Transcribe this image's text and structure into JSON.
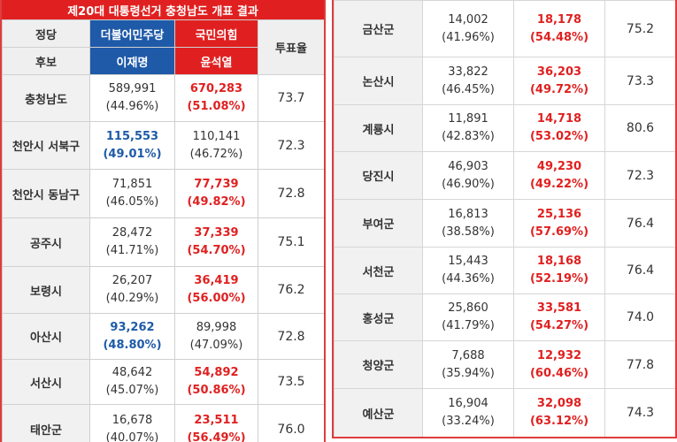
{
  "title": "제20대 대통령선거 충청남도 개표 결과",
  "header": {
    "party_label": "정당",
    "candidate_label": "후보",
    "turnout_label": "투표율",
    "dem_party": "더불어민주당",
    "ppp_party": "국민의힘",
    "dem_candidate": "이재명",
    "ppp_candidate": "윤석열"
  },
  "colors": {
    "accent_red": "#e02020",
    "dem_blue": "#1e5aa8"
  },
  "left_rows": [
    {
      "region": "충청남도",
      "dem_votes": "589,991",
      "dem_pct": "(44.96%)",
      "ppp_votes": "670,283",
      "ppp_pct": "(51.08%)",
      "turnout": "73.7",
      "winner": "ppp"
    },
    {
      "region": "천안시 서북구",
      "dem_votes": "115,553",
      "dem_pct": "(49.01%)",
      "ppp_votes": "110,141",
      "ppp_pct": "(46.72%)",
      "turnout": "72.3",
      "winner": "dem"
    },
    {
      "region": "천안시 동남구",
      "dem_votes": "71,851",
      "dem_pct": "(46.05%)",
      "ppp_votes": "77,739",
      "ppp_pct": "(49.82%)",
      "turnout": "72.8",
      "winner": "ppp"
    },
    {
      "region": "공주시",
      "dem_votes": "28,472",
      "dem_pct": "(41.71%)",
      "ppp_votes": "37,339",
      "ppp_pct": "(54.70%)",
      "turnout": "75.1",
      "winner": "ppp"
    },
    {
      "region": "보령시",
      "dem_votes": "26,207",
      "dem_pct": "(40.29%)",
      "ppp_votes": "36,419",
      "ppp_pct": "(56.00%)",
      "turnout": "76.2",
      "winner": "ppp"
    },
    {
      "region": "아산시",
      "dem_votes": "93,262",
      "dem_pct": "(48.80%)",
      "ppp_votes": "89,998",
      "ppp_pct": "(47.09%)",
      "turnout": "72.8",
      "winner": "dem"
    },
    {
      "region": "서산시",
      "dem_votes": "48,642",
      "dem_pct": "(45.07%)",
      "ppp_votes": "54,892",
      "ppp_pct": "(50.86%)",
      "turnout": "73.5",
      "winner": "ppp"
    },
    {
      "region": "태안군",
      "dem_votes": "16,678",
      "dem_pct": "(40.07%)",
      "ppp_votes": "23,511",
      "ppp_pct": "(56.49%)",
      "turnout": "76.0",
      "winner": "ppp"
    }
  ],
  "right_rows": [
    {
      "region": "금산군",
      "dem_votes": "14,002",
      "dem_pct": "(41.96%)",
      "ppp_votes": "18,178",
      "ppp_pct": "(54.48%)",
      "turnout": "75.2",
      "winner": "ppp"
    },
    {
      "region": "논산시",
      "dem_votes": "33,822",
      "dem_pct": "(46.45%)",
      "ppp_votes": "36,203",
      "ppp_pct": "(49.72%)",
      "turnout": "73.3",
      "winner": "ppp"
    },
    {
      "region": "계룡시",
      "dem_votes": "11,891",
      "dem_pct": "(42.83%)",
      "ppp_votes": "14,718",
      "ppp_pct": "(53.02%)",
      "turnout": "80.6",
      "winner": "ppp"
    },
    {
      "region": "당진시",
      "dem_votes": "46,903",
      "dem_pct": "(46.90%)",
      "ppp_votes": "49,230",
      "ppp_pct": "(49.22%)",
      "turnout": "72.3",
      "winner": "ppp"
    },
    {
      "region": "부여군",
      "dem_votes": "16,813",
      "dem_pct": "(38.58%)",
      "ppp_votes": "25,136",
      "ppp_pct": "(57.69%)",
      "turnout": "76.4",
      "winner": "ppp"
    },
    {
      "region": "서천군",
      "dem_votes": "15,443",
      "dem_pct": "(44.36%)",
      "ppp_votes": "18,168",
      "ppp_pct": "(52.19%)",
      "turnout": "76.4",
      "winner": "ppp"
    },
    {
      "region": "홍성군",
      "dem_votes": "25,860",
      "dem_pct": "(41.79%)",
      "ppp_votes": "33,581",
      "ppp_pct": "(54.27%)",
      "turnout": "74.0",
      "winner": "ppp"
    },
    {
      "region": "청양군",
      "dem_votes": "7,688",
      "dem_pct": "(35.94%)",
      "ppp_votes": "12,932",
      "ppp_pct": "(60.46%)",
      "turnout": "77.8",
      "winner": "ppp"
    },
    {
      "region": "예산군",
      "dem_votes": "16,904",
      "dem_pct": "(33.24%)",
      "ppp_votes": "32,098",
      "ppp_pct": "(63.12%)",
      "turnout": "74.3",
      "winner": "ppp"
    }
  ]
}
